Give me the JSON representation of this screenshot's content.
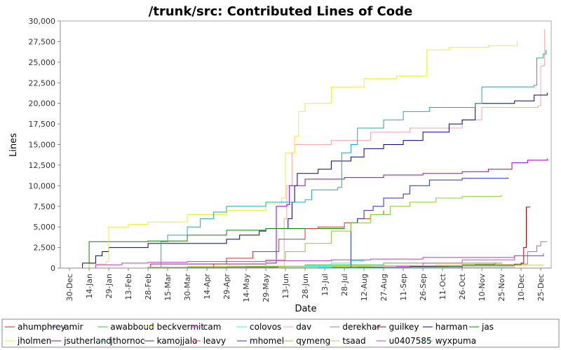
{
  "chart_data": {
    "type": "line",
    "title": "/trunk/src: Contributed Lines of Code",
    "xlabel": "Date",
    "ylabel": "Lines",
    "ylim": [
      0,
      30000
    ],
    "y_ticks": [
      "0",
      "2,500",
      "5,000",
      "7,500",
      "10,000",
      "12,500",
      "15,000",
      "17,500",
      "20,000",
      "22,500",
      "25,000",
      "27,500",
      "30,000"
    ],
    "y_tick_values": [
      0,
      2500,
      5000,
      7500,
      10000,
      12500,
      15000,
      17500,
      20000,
      22500,
      25000,
      27500,
      30000
    ],
    "x_ticks": [
      "30-Dec",
      "14-Jan",
      "29-Jan",
      "13-Feb",
      "28-Feb",
      "15-Mar",
      "30-Mar",
      "14-Apr",
      "29-Apr",
      "14-May",
      "29-May",
      "13-Jun",
      "28-Jun",
      "13-Jul",
      "28-Jul",
      "12-Aug",
      "27-Aug",
      "11-Sep",
      "26-Sep",
      "11-Oct",
      "26-Oct",
      "10-Nov",
      "25-Nov",
      "10-Dec",
      "25-Dec"
    ],
    "x_tick_days": [
      0,
      15,
      30,
      45,
      60,
      75,
      90,
      105,
      120,
      135,
      150,
      165,
      180,
      195,
      210,
      225,
      240,
      255,
      270,
      285,
      300,
      315,
      330,
      345,
      360
    ],
    "x_unit": "days from 30-Dec",
    "xlim": [
      -7,
      368
    ],
    "grid": false,
    "legend_position": "bottom",
    "series": [
      {
        "name": "ahumphrey",
        "color": "#dd2222",
        "points": [
          [
            222,
            0
          ],
          [
            240,
            150
          ],
          [
            280,
            300
          ],
          [
            310,
            450
          ],
          [
            325,
            600
          ]
        ]
      },
      {
        "name": "amir",
        "color": "#3333bb",
        "points": [
          [
            2,
            0
          ],
          [
            60,
            50
          ],
          [
            120,
            100
          ],
          [
            180,
            120
          ],
          [
            240,
            150
          ]
        ]
      },
      {
        "name": "awabboud",
        "color": "#33cc33",
        "points": [
          [
            10,
            0
          ],
          [
            60,
            100
          ],
          [
            120,
            150
          ],
          [
            135,
            200
          ],
          [
            180,
            400
          ],
          [
            240,
            600
          ],
          [
            330,
            700
          ]
        ]
      },
      {
        "name": "beckvermit",
        "color": "#eeee33",
        "points": [
          [
            150,
            0
          ],
          [
            160,
            100
          ],
          [
            200,
            200
          ],
          [
            230,
            300
          ],
          [
            280,
            400
          ],
          [
            330,
            600
          ]
        ]
      },
      {
        "name": "cam",
        "color": "#ee33ee",
        "points": [
          [
            220,
            0
          ],
          [
            250,
            200
          ],
          [
            270,
            600
          ],
          [
            300,
            1000
          ],
          [
            340,
            1500
          ],
          [
            362,
            1800
          ]
        ]
      },
      {
        "name": "colovos",
        "color": "#33eeee",
        "points": [
          [
            150,
            0
          ],
          [
            165,
            200
          ],
          [
            200,
            600
          ],
          [
            215,
            900
          ],
          [
            225,
            1000
          ]
        ]
      },
      {
        "name": "dav",
        "color": "#f4a7a7",
        "points": [
          [
            150,
            0
          ],
          [
            164,
            6000
          ],
          [
            166,
            10000
          ],
          [
            170,
            14000
          ],
          [
            172,
            15000
          ],
          [
            200,
            15500
          ],
          [
            230,
            16500
          ],
          [
            260,
            17000
          ],
          [
            300,
            18000
          ],
          [
            315,
            19500
          ],
          [
            358,
            19700
          ],
          [
            360,
            24500
          ],
          [
            362,
            24600
          ],
          [
            363,
            29000
          ]
        ]
      },
      {
        "name": "derekhar",
        "color": "#888888",
        "points": [
          [
            200,
            0
          ],
          [
            250,
            100
          ],
          [
            300,
            300
          ],
          [
            340,
            500
          ],
          [
            350,
            2000
          ],
          [
            357,
            2700
          ],
          [
            360,
            3200
          ],
          [
            365,
            3200
          ]
        ]
      },
      {
        "name": "guilkey",
        "color": "#aa0000",
        "points": [
          [
            230,
            0
          ],
          [
            300,
            400
          ],
          [
            345,
            600
          ],
          [
            347,
            2500
          ],
          [
            349,
            7400
          ],
          [
            352,
            7400
          ]
        ]
      },
      {
        "name": "harman",
        "color": "#000088",
        "points": [
          [
            0,
            0
          ],
          [
            10,
            600
          ],
          [
            20,
            1500
          ],
          [
            25,
            2000
          ],
          [
            30,
            2500
          ],
          [
            60,
            3000
          ],
          [
            120,
            3500
          ],
          [
            130,
            4000
          ],
          [
            145,
            4500
          ],
          [
            150,
            4800
          ],
          [
            167,
            6000
          ],
          [
            170,
            8000
          ],
          [
            172,
            10000
          ],
          [
            174,
            11500
          ],
          [
            190,
            12000
          ],
          [
            200,
            13000
          ],
          [
            215,
            13500
          ],
          [
            225,
            14500
          ],
          [
            240,
            15000
          ],
          [
            255,
            15500
          ],
          [
            270,
            16500
          ],
          [
            290,
            17500
          ],
          [
            300,
            18000
          ],
          [
            310,
            20000
          ],
          [
            340,
            20300
          ],
          [
            355,
            21000
          ],
          [
            365,
            21300
          ]
        ]
      },
      {
        "name": "jas",
        "color": "#008800",
        "points": [
          [
            10,
            0
          ],
          [
            15,
            3200
          ],
          [
            60,
            3300
          ],
          [
            90,
            4000
          ],
          [
            120,
            4600
          ],
          [
            150,
            4800
          ],
          [
            210,
            4900
          ]
        ]
      },
      {
        "name": "jholmen",
        "color": "#eeee33",
        "points": [
          [
            10,
            0
          ],
          [
            15,
            500
          ],
          [
            28,
            800
          ],
          [
            30,
            5000
          ],
          [
            45,
            5300
          ],
          [
            60,
            5600
          ],
          [
            90,
            6500
          ],
          [
            120,
            7000
          ],
          [
            150,
            7800
          ],
          [
            162,
            8500
          ],
          [
            165,
            14000
          ],
          [
            172,
            16000
          ],
          [
            175,
            19000
          ],
          [
            180,
            20000
          ],
          [
            200,
            22000
          ],
          [
            225,
            23000
          ],
          [
            250,
            23300
          ],
          [
            272,
            23300
          ],
          [
            273,
            26500
          ],
          [
            290,
            26800
          ],
          [
            320,
            27000
          ],
          [
            342,
            27500
          ]
        ]
      },
      {
        "name": "jsutherland",
        "color": "#9900cc",
        "points": [
          [
            60,
            0
          ],
          [
            62,
            500
          ],
          [
            150,
            600
          ],
          [
            158,
            7500
          ],
          [
            166,
            7700
          ],
          [
            168,
            10000
          ],
          [
            180,
            10800
          ],
          [
            210,
            11000
          ],
          [
            240,
            11300
          ],
          [
            270,
            11500
          ],
          [
            300,
            11700
          ],
          [
            320,
            12000
          ],
          [
            338,
            12800
          ],
          [
            350,
            13100
          ],
          [
            365,
            13300
          ]
        ]
      },
      {
        "name": "jthornoc",
        "color": "#22aaaa",
        "points": [
          [
            60,
            0
          ],
          [
            70,
            3200
          ],
          [
            75,
            4000
          ],
          [
            90,
            5000
          ],
          [
            100,
            6000
          ],
          [
            110,
            6800
          ],
          [
            120,
            7500
          ],
          [
            150,
            8000
          ],
          [
            180,
            8300
          ],
          [
            185,
            9500
          ],
          [
            205,
            9800
          ],
          [
            208,
            14000
          ],
          [
            215,
            15000
          ],
          [
            220,
            17000
          ],
          [
            240,
            18000
          ],
          [
            255,
            19000
          ],
          [
            275,
            19500
          ],
          [
            310,
            20000
          ],
          [
            315,
            22000
          ],
          [
            355,
            22200
          ],
          [
            357,
            25500
          ],
          [
            362,
            26000
          ],
          [
            364,
            26500
          ]
        ]
      },
      {
        "name": "kamojjala",
        "color": "#333333",
        "points": [
          [
            150,
            0
          ],
          [
            220,
            100
          ],
          [
            260,
            200
          ],
          [
            300,
            350
          ],
          [
            340,
            500
          ]
        ]
      },
      {
        "name": "leavy",
        "color": "#cc3333",
        "points": [
          [
            90,
            0
          ],
          [
            110,
            500
          ],
          [
            120,
            1200
          ],
          [
            140,
            2000
          ],
          [
            160,
            3500
          ],
          [
            180,
            4800
          ],
          [
            190,
            5000
          ],
          [
            210,
            5500
          ],
          [
            220,
            6000
          ],
          [
            230,
            6500
          ],
          [
            240,
            7000
          ]
        ]
      },
      {
        "name": "mhomel",
        "color": "#2233aa",
        "points": [
          [
            165,
            0
          ],
          [
            215,
            5500
          ],
          [
            220,
            6000
          ],
          [
            225,
            7000
          ],
          [
            232,
            7500
          ],
          [
            240,
            8500
          ],
          [
            255,
            9000
          ],
          [
            260,
            10000
          ],
          [
            275,
            10700
          ],
          [
            300,
            10900
          ],
          [
            335,
            11000
          ]
        ]
      },
      {
        "name": "qymeng",
        "color": "#88cc33",
        "points": [
          [
            135,
            0
          ],
          [
            150,
            1000
          ],
          [
            165,
            2000
          ],
          [
            180,
            3000
          ],
          [
            200,
            4500
          ],
          [
            215,
            5500
          ],
          [
            230,
            6500
          ],
          [
            245,
            7500
          ],
          [
            260,
            8000
          ],
          [
            280,
            8500
          ],
          [
            300,
            8700
          ],
          [
            330,
            8900
          ]
        ]
      },
      {
        "name": "tsaad",
        "color": "#cccc33",
        "points": [
          [
            30,
            0
          ],
          [
            60,
            100
          ],
          [
            90,
            200
          ],
          [
            120,
            250
          ],
          [
            180,
            300
          ],
          [
            240,
            300
          ],
          [
            300,
            350
          ],
          [
            362,
            400
          ]
        ]
      },
      {
        "name": "u0407585",
        "color": "#cc33cc",
        "points": [
          [
            5,
            0
          ],
          [
            20,
            400
          ],
          [
            40,
            600
          ],
          [
            60,
            700
          ],
          [
            90,
            800
          ],
          [
            150,
            900
          ],
          [
            200,
            1000
          ],
          [
            230,
            1100
          ],
          [
            270,
            1300
          ],
          [
            340,
            1500
          ],
          [
            362,
            1600
          ]
        ]
      },
      {
        "name": "wyxpuma",
        "color": "#33cccc",
        "points": [
          [
            140,
            0
          ],
          [
            190,
            50
          ],
          [
            240,
            100
          ],
          [
            290,
            150
          ],
          [
            340,
            180
          ]
        ]
      }
    ]
  }
}
